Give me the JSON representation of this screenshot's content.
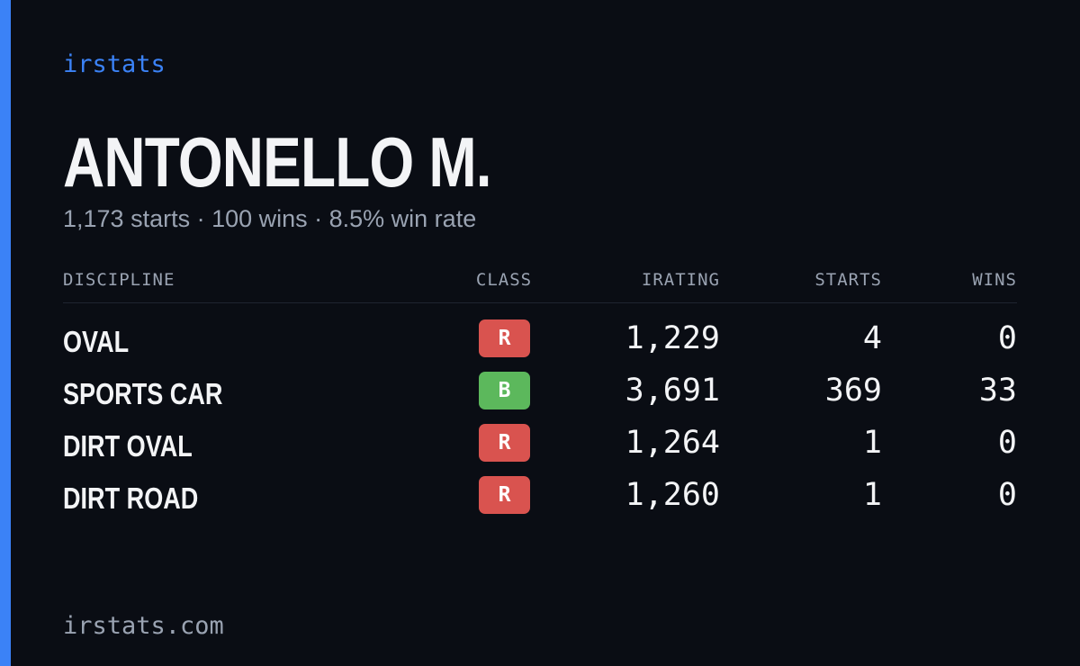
{
  "brand": "irstats",
  "driver": {
    "name": "ANTONELLO M.",
    "summary": "1,173 starts · 100 wins · 8.5% win rate"
  },
  "table": {
    "headers": {
      "discipline": "DISCIPLINE",
      "class": "CLASS",
      "irating": "IRATING",
      "starts": "STARTS",
      "wins": "WINS"
    },
    "rows": [
      {
        "discipline": "OVAL",
        "class": "R",
        "class_color": "#d9534f",
        "irating": "1,229",
        "starts": "4",
        "wins": "0"
      },
      {
        "discipline": "SPORTS CAR",
        "class": "B",
        "class_color": "#5cb85c",
        "irating": "3,691",
        "starts": "369",
        "wins": "33"
      },
      {
        "discipline": "DIRT OVAL",
        "class": "R",
        "class_color": "#d9534f",
        "irating": "1,264",
        "starts": "1",
        "wins": "0"
      },
      {
        "discipline": "DIRT ROAD",
        "class": "R",
        "class_color": "#d9534f",
        "irating": "1,260",
        "starts": "1",
        "wins": "0"
      }
    ]
  },
  "footer": {
    "url": "irstats.com"
  },
  "colors": {
    "accent": "#3b82f6",
    "background": "#0a0d14",
    "text_primary": "#f3f4f6",
    "text_muted": "#9aa3b2"
  }
}
